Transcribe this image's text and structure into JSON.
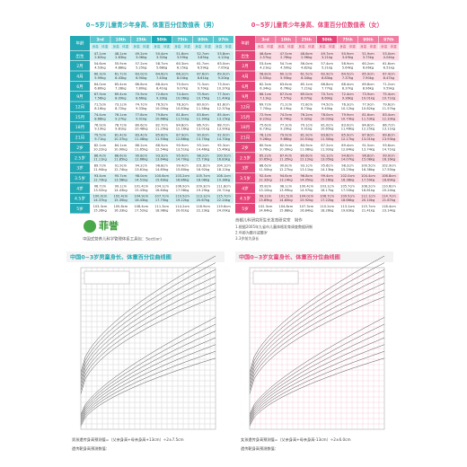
{
  "boys_table": {
    "title": "0~5岁儿童青少年身高、体重百分位数值表（男）",
    "corner": "年龄",
    "percentiles": [
      "3rd",
      "10th",
      "25th",
      "50th",
      "75th",
      "90th",
      "97th"
    ],
    "sub_headers": [
      "身高",
      "体重"
    ],
    "rows": [
      {
        "age": "出生",
        "height": [
          "47.1cm",
          "48.1cm",
          "49.2cm",
          "50.4cm",
          "51.6cm",
          "52.7cm",
          "53.8cm"
        ],
        "weight": [
          "2.62kg",
          "2.83kg",
          "3.06kg",
          "3.32kg",
          "3.59kg",
          "3.85kg",
          "4.12kg"
        ]
      },
      {
        "age": "2月",
        "height": [
          "54.6cm",
          "55.9cm",
          "57.2cm",
          "58.7cm",
          "60.3cm",
          "61.7cm",
          "63.0cm"
        ],
        "weight": [
          "4.53kg",
          "4.88kg",
          "5.25kg",
          "5.68kg",
          "6.15kg",
          "6.59kg",
          "7.05kg"
        ]
      },
      {
        "age": "4月",
        "height": [
          "60.3cm",
          "61.7cm",
          "63.0cm",
          "64.6cm",
          "66.2cm",
          "67.6cm",
          "69.0cm"
        ],
        "weight": [
          "5.99kg",
          "6.43kg",
          "6.90kg",
          "7.45kg",
          "8.04kg",
          "8.61kg",
          "9.20kg"
        ]
      },
      {
        "age": "6月",
        "height": [
          "64.0cm",
          "65.4cm",
          "66.8cm",
          "68.4cm",
          "70.0cm",
          "71.5cm",
          "73.0cm"
        ],
        "weight": [
          "6.80kg",
          "7.28kg",
          "7.80kg",
          "8.41kg",
          "9.07kg",
          "9.70kg",
          "10.37kg"
        ]
      },
      {
        "age": "9月",
        "height": [
          "67.9cm",
          "69.4cm",
          "70.9cm",
          "72.6cm",
          "74.4cm",
          "75.9cm",
          "77.5cm"
        ],
        "weight": [
          "7.56kg",
          "8.09kg",
          "8.66kg",
          "9.33kg",
          "10.06kg",
          "10.75kg",
          "11.49kg"
        ]
      },
      {
        "age": "12月",
        "height": [
          "71.5cm",
          "73.1cm",
          "74.7cm",
          "76.5cm",
          "78.3cm",
          "80.0cm",
          "81.8cm"
        ],
        "weight": [
          "8.16kg",
          "8.72kg",
          "9.33kg",
          "10.05kg",
          "10.83kg",
          "11.58kg",
          "12.37kg"
        ]
      },
      {
        "age": "15月",
        "height": [
          "74.4cm",
          "76.1cm",
          "77.8cm",
          "79.8cm",
          "81.8cm",
          "83.6cm",
          "85.4cm"
        ],
        "weight": [
          "8.68kg",
          "9.27kg",
          "9.91kg",
          "10.68kg",
          "11.51kg",
          "12.30kg",
          "13.15kg"
        ]
      },
      {
        "age": "18月",
        "height": [
          "76.9cm",
          "78.7cm",
          "80.6cm",
          "82.7cm",
          "84.8cm",
          "86.7cm",
          "88.7cm"
        ],
        "weight": [
          "9.19kg",
          "9.81kg",
          "10.48kg",
          "11.29kg",
          "12.16kg",
          "13.01kg",
          "13.90kg"
        ]
      },
      {
        "age": "21月",
        "height": [
          "79.5cm",
          "81.4cm",
          "83.4cm",
          "85.6cm",
          "87.9cm",
          "90.0cm",
          "92.0cm"
        ],
        "weight": [
          "9.71kg",
          "10.37kg",
          "11.08kg",
          "11.93kg",
          "12.86kg",
          "13.75kg",
          "14.70kg"
        ]
      },
      {
        "age": "2岁",
        "height": [
          "82.1cm",
          "84.1cm",
          "86.2cm",
          "88.5cm",
          "90.9cm",
          "93.1cm",
          "95.3cm"
        ],
        "weight": [
          "10.22kg",
          "10.90kg",
          "11.65kg",
          "12.54kg",
          "13.51kg",
          "14.46kg",
          "15.46kg"
        ]
      },
      {
        "age": "2.5岁",
        "height": [
          "86.4cm",
          "88.6cm",
          "90.8cm",
          "93.3cm",
          "95.9cm",
          "98.2cm",
          "100.5cm"
        ],
        "weight": [
          "11.11kg",
          "11.85kg",
          "12.66kg",
          "13.64kg",
          "14.70kg",
          "15.73kg",
          "16.83kg"
        ]
      },
      {
        "age": "3岁",
        "height": [
          "89.7cm",
          "91.9cm",
          "94.2cm",
          "96.8cm",
          "99.4cm",
          "101.8cm",
          "104.1cm"
        ],
        "weight": [
          "11.94kg",
          "12.74kg",
          "13.61kg",
          "14.65kg",
          "15.80kg",
          "16.92kg",
          "18.12kg"
        ]
      },
      {
        "age": "3.5岁",
        "height": [
          "93.4cm",
          "95.7cm",
          "98.0cm",
          "100.6cm",
          "103.2cm",
          "105.7cm",
          "108.1cm"
        ],
        "weight": [
          "12.73kg",
          "13.58kg",
          "14.51kg",
          "15.63kg",
          "16.86kg",
          "18.08kg",
          "19.38kg"
        ]
      },
      {
        "age": "4岁",
        "height": [
          "96.7cm",
          "99.1cm",
          "101.4cm",
          "104.1cm",
          "106.9cm",
          "109.3cm",
          "111.8cm"
        ],
        "weight": [
          "13.52kg",
          "14.43kg",
          "15.43kg",
          "16.64kg",
          "17.98kg",
          "19.29kg",
          "20.71kg"
        ]
      },
      {
        "age": "4.5岁",
        "height": [
          "100.0cm",
          "102.4cm",
          "104.9cm",
          "107.7cm",
          "110.5cm",
          "113.1cm",
          "115.7cm"
        ],
        "weight": [
          "14.37kg",
          "15.35kg",
          "16.43kg",
          "17.75kg",
          "19.22kg",
          "20.67kg",
          "22.24kg"
        ]
      },
      {
        "age": "5岁",
        "height": [
          "103.3cm",
          "105.8cm",
          "108.4cm",
          "111.3cm",
          "114.2cm",
          "116.9cm",
          "119.6cm"
        ],
        "weight": [
          "15.26kg",
          "16.33kg",
          "17.52kg",
          "18.98kg",
          "20.61kg",
          "22.23kg",
          "24.00kg"
        ]
      }
    ]
  },
  "girls_table": {
    "title": "0~5岁儿童青少年身高、体重百分位数值表（女）",
    "corner": "年龄",
    "percentiles": [
      "3rd",
      "10th",
      "25th",
      "50th",
      "75th",
      "90th",
      "97th"
    ],
    "sub_headers": [
      "身高",
      "体重"
    ],
    "rows": [
      {
        "age": "出生",
        "height": [
          "46.6cm",
          "47.5cm",
          "48.6cm",
          "49.7cm",
          "50.9cm",
          "51.9cm",
          "53.0cm"
        ],
        "weight": [
          "2.57kg",
          "2.76kg",
          "2.96kg",
          "3.21kg",
          "3.49kg",
          "3.75kg",
          "4.04kg"
        ]
      },
      {
        "age": "2月",
        "height": [
          "53.4cm",
          "54.7cm",
          "56.0cm",
          "57.4cm",
          "58.9cm",
          "60.2cm",
          "61.6cm"
        ],
        "weight": [
          "4.21kg",
          "4.50kg",
          "4.82kg",
          "5.21kg",
          "5.64kg",
          "6.06kg",
          "6.51kg"
        ]
      },
      {
        "age": "4月",
        "height": [
          "58.8cm",
          "60.1cm",
          "61.5cm",
          "62.9cm",
          "64.5cm",
          "65.9cm",
          "67.4cm"
        ],
        "weight": [
          "5.55kg",
          "5.93kg",
          "6.34kg",
          "6.83kg",
          "7.37kg",
          "7.90kg",
          "8.47kg"
        ]
      },
      {
        "age": "6月",
        "height": [
          "62.3cm",
          "63.6cm",
          "65.1cm",
          "66.8cm",
          "68.4cm",
          "69.8cm",
          "71.2cm"
        ],
        "weight": [
          "6.34kg",
          "6.76kg",
          "7.21kg",
          "7.77kg",
          "8.37kg",
          "8.96kg",
          "9.59kg"
        ]
      },
      {
        "age": "9月",
        "height": [
          "66.1cm",
          "67.5cm",
          "69.0cm",
          "70.7cm",
          "72.4cm",
          "73.9cm",
          "75.4cm"
        ],
        "weight": [
          "7.11kg",
          "7.57kg",
          "8.07kg",
          "8.69kg",
          "9.36kg",
          "10.01kg",
          "10.71kg"
        ]
      },
      {
        "age": "12月",
        "height": [
          "69.7cm",
          "71.2cm",
          "72.8cm",
          "74.5cm",
          "76.3cm",
          "77.9cm",
          "79.6cm"
        ],
        "weight": [
          "7.70kg",
          "8.19kg",
          "8.73kg",
          "9.40kg",
          "10.12kg",
          "10.82kg",
          "11.57kg"
        ]
      },
      {
        "age": "15月",
        "height": [
          "72.9cm",
          "74.5cm",
          "76.2cm",
          "78.0cm",
          "79.9cm",
          "81.6cm",
          "83.4cm"
        ],
        "weight": [
          "8.22kg",
          "8.74kg",
          "9.32kg",
          "10.02kg",
          "10.79kg",
          "11.53kg",
          "12.33kg"
        ]
      },
      {
        "age": "18月",
        "height": [
          "75.6cm",
          "77.3cm",
          "79.1cm",
          "81.0cm",
          "83.0cm",
          "84.8cm",
          "86.7cm"
        ],
        "weight": [
          "8.73kg",
          "9.29kg",
          "9.91kg",
          "10.65kg",
          "11.46kg",
          "12.25kg",
          "13.11kg"
        ]
      },
      {
        "age": "21月",
        "height": [
          "78.1cm",
          "79.9cm",
          "81.9cm",
          "83.8cm",
          "85.9cm",
          "87.8cm",
          "89.8cm"
        ],
        "weight": [
          "9.26kg",
          "9.86kg",
          "10.51kg",
          "11.30kg",
          "12.17kg",
          "13.01kg",
          "13.93kg"
        ]
      },
      {
        "age": "2岁",
        "height": [
          "80.9cm",
          "82.9cm",
          "84.9cm",
          "87.2cm",
          "89.4cm",
          "91.5cm",
          "93.6cm"
        ],
        "weight": [
          "9.76kg",
          "10.39kg",
          "11.08kg",
          "11.92kg",
          "12.84kg",
          "13.74kg",
          "14.71kg"
        ]
      },
      {
        "age": "2.5岁",
        "height": [
          "85.2cm",
          "87.4cm",
          "89.6cm",
          "92.1cm",
          "94.6cm",
          "96.8cm",
          "99.0cm"
        ],
        "weight": [
          "10.65kg",
          "11.35kg",
          "12.12kg",
          "13.05kg",
          "14.07kg",
          "15.08kg",
          "16.16kg"
        ]
      },
      {
        "age": "3岁",
        "height": [
          "88.6cm",
          "90.8cm",
          "93.1cm",
          "95.6cm",
          "98.2cm",
          "100.5cm",
          "102.9cm"
        ],
        "weight": [
          "11.50kg",
          "12.27kg",
          "13.11kg",
          "14.13kg",
          "15.25kg",
          "16.36kg",
          "17.55kg"
        ]
      },
      {
        "age": "3.5岁",
        "height": [
          "92.4cm",
          "94.6cm",
          "96.8cm",
          "99.4cm",
          "102.0cm",
          "104.4cm",
          "106.8cm"
        ],
        "weight": [
          "12.32kg",
          "13.14kg",
          "14.05kg",
          "15.16kg",
          "16.38kg",
          "17.59kg",
          "18.89kg"
        ]
      },
      {
        "age": "4岁",
        "height": [
          "95.8cm",
          "98.1cm",
          "100.4cm",
          "103.1cm",
          "105.7cm",
          "108.2cm",
          "110.6cm"
        ],
        "weight": [
          "13.10kg",
          "13.99kg",
          "14.97kg",
          "16.17kg",
          "17.50kg",
          "18.81kg",
          "20.24kg"
        ]
      },
      {
        "age": "4.5岁",
        "height": [
          "99.2cm",
          "101.5cm",
          "104.0cm",
          "106.7cm",
          "109.5cm",
          "112.1cm",
          "114.7cm"
        ],
        "weight": [
          "13.89kg",
          "14.85kg",
          "15.92kg",
          "17.22kg",
          "18.66kg",
          "20.10kg",
          "21.67kg"
        ]
      },
      {
        "age": "5岁",
        "height": [
          "102.3cm",
          "104.8cm",
          "107.3cm",
          "110.2cm",
          "113.1cm",
          "115.7cm",
          "118.4cm"
        ],
        "weight": [
          "14.64kg",
          "15.68kg",
          "16.84kg",
          "18.26kg",
          "19.83kg",
          "21.41kg",
          "23.14kg"
        ]
      }
    ]
  },
  "brand": {
    "logo": "菲誉",
    "tagline": "中国式营养儿科学管理体系工具包：Sect(or)"
  },
  "notes": {
    "author": "首都儿科研究所生长发育研究室　制作",
    "items": [
      "1.根据2005年九省市儿童体格发育调查数据研制",
      "2.年龄为整月或整岁",
      "3.3岁前为身长"
    ]
  },
  "boys_chart": {
    "title": "中国0~3岁男童身长、体重百分位曲线图",
    "formula": "男孩遗传身高预测值=（父亲身高+母亲身高+13cm）÷2±7.5cm",
    "target": "遗传靶身高预测数值："
  },
  "girls_chart": {
    "title": "中国0~3岁女童身长、体重百分位曲线图",
    "formula": "女孩遗传身高预测值=（父亲身高+母亲身高-13cm）÷2±6.0cm",
    "target": "遗传靶身高预测数值："
  }
}
